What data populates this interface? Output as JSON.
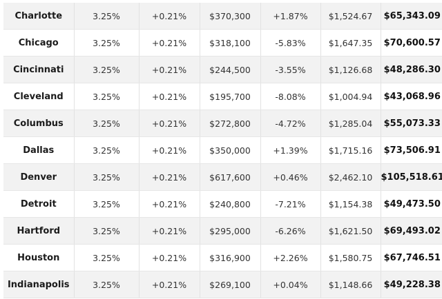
{
  "table": {
    "rows": [
      {
        "city": "Charlotte",
        "rate": "3.25%",
        "rate_change": "+0.21%",
        "home_price": "$370,300",
        "price_change": "+1.87%",
        "monthly_payment": "$1,524.67",
        "income_needed": "$65,343.09"
      },
      {
        "city": "Chicago",
        "rate": "3.25%",
        "rate_change": "+0.21%",
        "home_price": "$318,100",
        "price_change": "-5.83%",
        "monthly_payment": "$1,647.35",
        "income_needed": "$70,600.57"
      },
      {
        "city": "Cincinnati",
        "rate": "3.25%",
        "rate_change": "+0.21%",
        "home_price": "$244,500",
        "price_change": "-3.55%",
        "monthly_payment": "$1,126.68",
        "income_needed": "$48,286.30"
      },
      {
        "city": "Cleveland",
        "rate": "3.25%",
        "rate_change": "+0.21%",
        "home_price": "$195,700",
        "price_change": "-8.08%",
        "monthly_payment": "$1,004.94",
        "income_needed": "$43,068.96"
      },
      {
        "city": "Columbus",
        "rate": "3.25%",
        "rate_change": "+0.21%",
        "home_price": "$272,800",
        "price_change": "-4.72%",
        "monthly_payment": "$1,285.04",
        "income_needed": "$55,073.33"
      },
      {
        "city": "Dallas",
        "rate": "3.25%",
        "rate_change": "+0.21%",
        "home_price": "$350,000",
        "price_change": "+1.39%",
        "monthly_payment": "$1,715.16",
        "income_needed": "$73,506.91"
      },
      {
        "city": "Denver",
        "rate": "3.25%",
        "rate_change": "+0.21%",
        "home_price": "$617,600",
        "price_change": "+0.46%",
        "monthly_payment": "$2,462.10",
        "income_needed": "$105,518.61"
      },
      {
        "city": "Detroit",
        "rate": "3.25%",
        "rate_change": "+0.21%",
        "home_price": "$240,800",
        "price_change": "-7.21%",
        "monthly_payment": "$1,154.38",
        "income_needed": "$49,473.50"
      },
      {
        "city": "Hartford",
        "rate": "3.25%",
        "rate_change": "+0.21%",
        "home_price": "$295,000",
        "price_change": "-6.26%",
        "monthly_payment": "$1,621.50",
        "income_needed": "$69,493.02"
      },
      {
        "city": "Houston",
        "rate": "3.25%",
        "rate_change": "+0.21%",
        "home_price": "$316,900",
        "price_change": "+2.26%",
        "monthly_payment": "$1,580.75",
        "income_needed": "$67,746.51"
      },
      {
        "city": "Indianapolis",
        "rate": "3.25%",
        "rate_change": "+0.21%",
        "home_price": "$269,100",
        "price_change": "+0.04%",
        "monthly_payment": "$1,148.66",
        "income_needed": "$49,228.38"
      }
    ]
  },
  "colors": {
    "row_shade": "#f2f2f2",
    "row_plain": "#ffffff",
    "grid_line": "#e2e2e2",
    "text": "#333333"
  }
}
